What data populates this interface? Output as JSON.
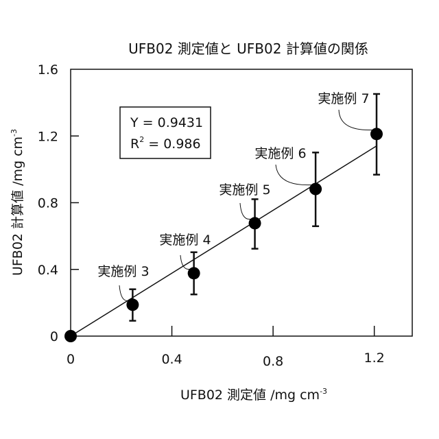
{
  "chart_data": {
    "type": "scatter",
    "title": "UFB02 測定値と UFB02 計算値の関係",
    "xlabel": "UFB02 測定値 /mg cm",
    "xlabel_sup": "-3",
    "ylabel": "UFB02 計算値 /mg cm",
    "ylabel_sup": "-3",
    "xlim": [
      0,
      1.35
    ],
    "ylim": [
      0,
      1.6
    ],
    "xticks": [
      0,
      0.4,
      0.8,
      1.2
    ],
    "xtick_labels": [
      "0",
      "0.4",
      "0.8",
      "1.2"
    ],
    "yticks": [
      0,
      0.4,
      0.8,
      1.2,
      1.6
    ],
    "ytick_labels": [
      "0",
      "0.4",
      "0.8",
      "1.2",
      "1.6"
    ],
    "grid": false,
    "points": [
      {
        "label": "",
        "x": 0,
        "y": 0,
        "err_low": null,
        "err_high": null
      },
      {
        "label": "実施例 3",
        "x": 0.245,
        "y": 0.188,
        "err_low": 0.092,
        "err_high": 0.281
      },
      {
        "label": "実施例 4",
        "x": 0.487,
        "y": 0.377,
        "err_low": 0.25,
        "err_high": 0.503
      },
      {
        "label": "実施例 5",
        "x": 0.728,
        "y": 0.677,
        "err_low": 0.524,
        "err_high": 0.821
      },
      {
        "label": "実施例 6",
        "x": 0.968,
        "y": 0.882,
        "err_low": 0.659,
        "err_high": 1.101
      },
      {
        "label": "実施例 7",
        "x": 1.209,
        "y": 1.212,
        "err_low": 0.968,
        "err_high": 1.452
      }
    ],
    "fit": {
      "slope": 0.9431,
      "x_range": [
        0,
        1.209
      ]
    },
    "annotation": {
      "line1": "Y = 0.9431",
      "line2_prefix": "R",
      "line2_sup": "2",
      "line2_suffix": " = 0.986"
    }
  }
}
